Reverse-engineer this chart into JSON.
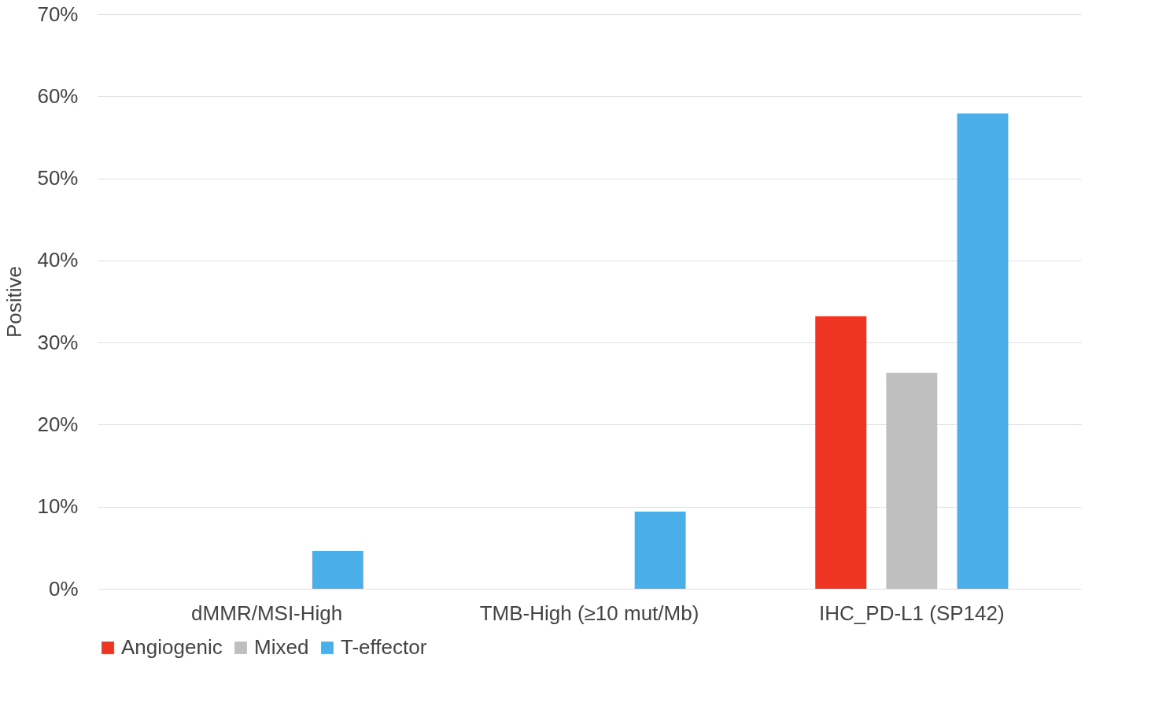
{
  "chart_data": {
    "type": "bar",
    "ylabel": "Positive",
    "categories": [
      "dMMR/MSI-High",
      "TMB-High (≥10 mut/Mb)",
      "IHC_PD-L1 (SP142)"
    ],
    "series": [
      {
        "name": "Angiogenic",
        "color": "#ee3524",
        "values": [
          0,
          0,
          33.2
        ]
      },
      {
        "name": "Mixed",
        "color": "#bfbfbf",
        "values": [
          0,
          0,
          26.3
        ]
      },
      {
        "name": "T-effector",
        "color": "#4aaee8",
        "values": [
          4.6,
          9.4,
          57.9
        ]
      }
    ],
    "ylim": [
      0,
      70
    ],
    "yticks": [
      {
        "value": 0,
        "label": "0%"
      },
      {
        "value": 10,
        "label": "10%"
      },
      {
        "value": 20,
        "label": "20%"
      },
      {
        "value": 30,
        "label": "30%"
      },
      {
        "value": 40,
        "label": "40%"
      },
      {
        "value": 50,
        "label": "50%"
      },
      {
        "value": 60,
        "label": "60%"
      },
      {
        "value": 70,
        "label": "70%"
      }
    ],
    "grid": "y",
    "legend": "bottom"
  }
}
